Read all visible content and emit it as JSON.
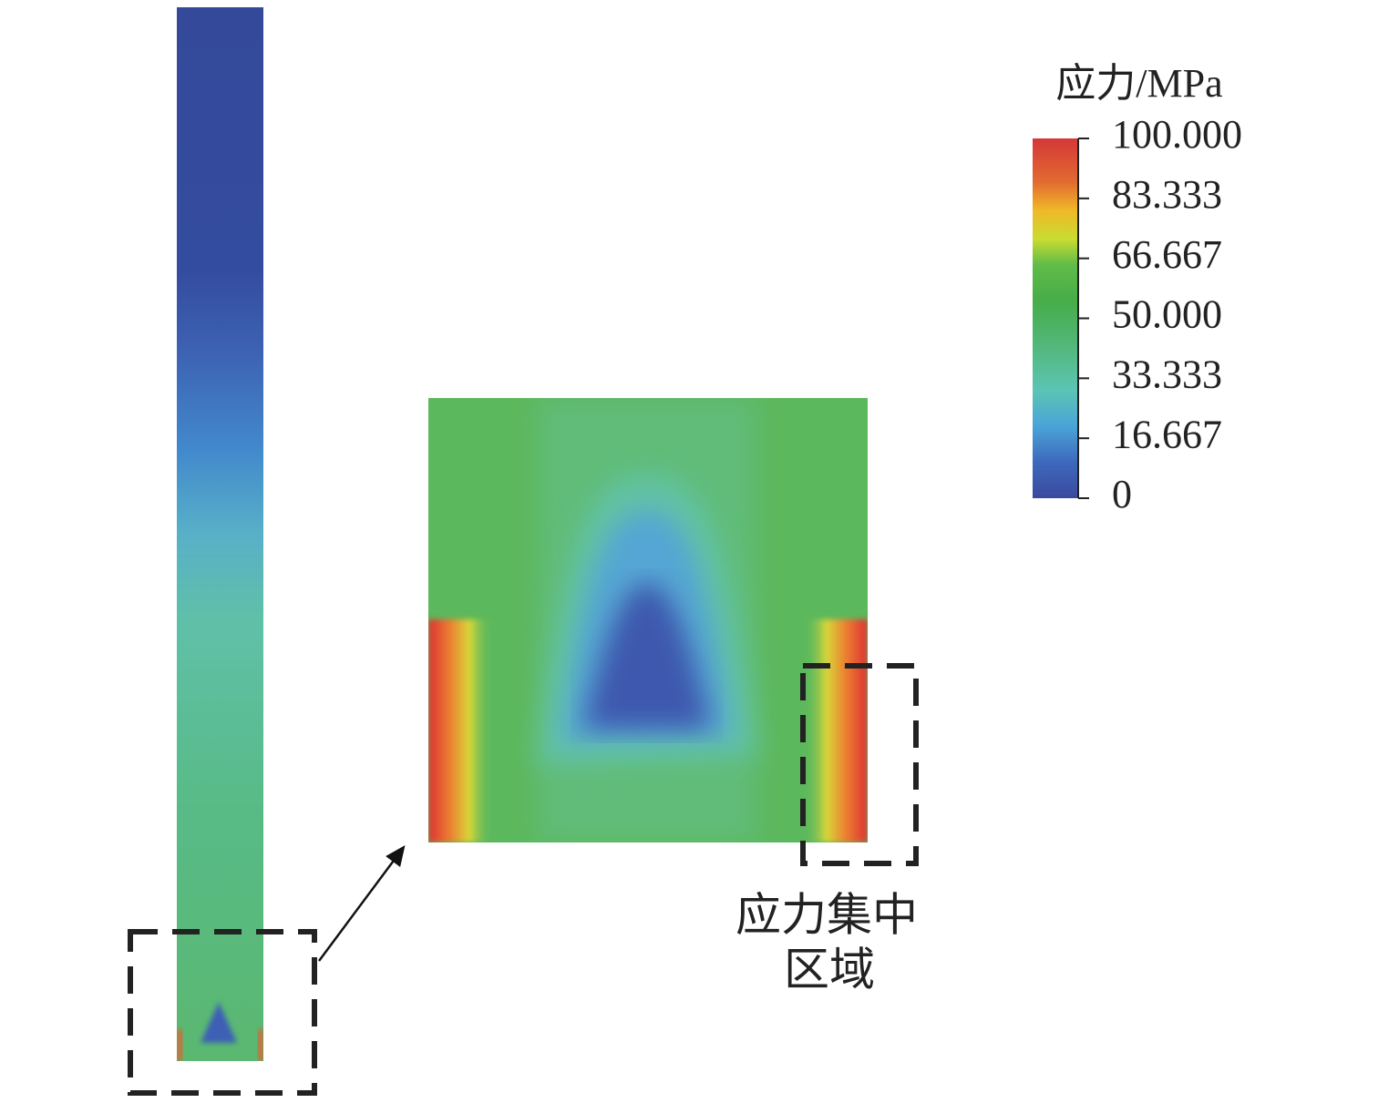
{
  "colorbar": {
    "title": "应力/MPa",
    "clim": [
      0,
      100
    ],
    "ticks": [
      {
        "value": 100,
        "label": "100.000"
      },
      {
        "value": 83.333,
        "label": "83.333"
      },
      {
        "value": 66.667,
        "label": "66.667"
      },
      {
        "value": 50,
        "label": "50.000"
      },
      {
        "value": 33.333,
        "label": "33.333"
      },
      {
        "value": 16.667,
        "label": "16.667"
      },
      0
    ]
  },
  "annotation": {
    "lines": [
      "应力集中",
      "区域"
    ]
  }
}
